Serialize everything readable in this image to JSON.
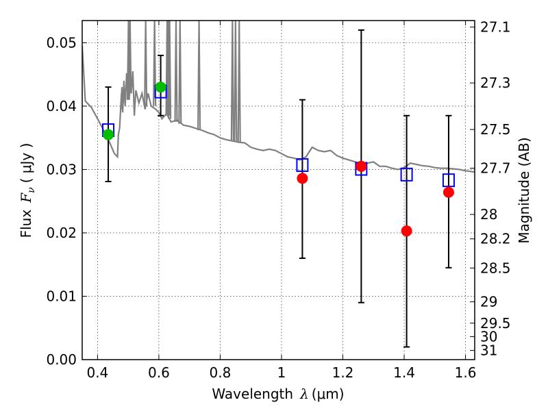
{
  "chart_data": {
    "type": "scatter",
    "xlabel": {
      "text": "Wavelength",
      "symbol": "λ",
      "unit": "(μm)"
    },
    "ylabel": {
      "text": "Flux",
      "symbol": "F",
      "subscript": "ν",
      "unit": "( μJy )"
    },
    "ylabel_right": "Magnitude (AB)",
    "xlim": [
      0.35,
      1.63
    ],
    "ylim": [
      0.0,
      0.0535
    ],
    "grid": true,
    "x_ticks": [
      {
        "v": 0.4,
        "label": "0.4"
      },
      {
        "v": 0.6,
        "label": "0.6"
      },
      {
        "v": 0.8,
        "label": "0.8"
      },
      {
        "v": 1.0,
        "label": "1"
      },
      {
        "v": 1.2,
        "label": "1.2"
      },
      {
        "v": 1.4,
        "label": "1.4"
      },
      {
        "v": 1.6,
        "label": "1.6"
      }
    ],
    "y_ticks": [
      {
        "v": 0.0,
        "label": "0.00"
      },
      {
        "v": 0.01,
        "label": "0.01"
      },
      {
        "v": 0.02,
        "label": "0.02"
      },
      {
        "v": 0.03,
        "label": "0.03"
      },
      {
        "v": 0.04,
        "label": "0.04"
      },
      {
        "v": 0.05,
        "label": "0.05"
      }
    ],
    "mag_ticks": [
      {
        "mag": 27.1,
        "label": "27.1"
      },
      {
        "mag": 27.3,
        "label": "27.3"
      },
      {
        "mag": 27.5,
        "label": "27.5"
      },
      {
        "mag": 27.7,
        "label": "27.7"
      },
      {
        "mag": 28.0,
        "label": "28"
      },
      {
        "mag": 28.2,
        "label": "28.2"
      },
      {
        "mag": 28.5,
        "label": "28.5"
      },
      {
        "mag": 29.0,
        "label": "29"
      },
      {
        "mag": 29.5,
        "label": "29.5"
      },
      {
        "mag": 30.0,
        "label": "30"
      },
      {
        "mag": 31.0,
        "label": "31"
      }
    ],
    "series": [
      {
        "kind": "model_sed",
        "color": "#808080",
        "points": [
          [
            0.35,
            0.0495
          ],
          [
            0.36,
            0.0408
          ],
          [
            0.38,
            0.0398
          ],
          [
            0.4,
            0.038
          ],
          [
            0.42,
            0.0362
          ],
          [
            0.44,
            0.0342
          ],
          [
            0.455,
            0.0325
          ],
          [
            0.465,
            0.032
          ],
          [
            0.468,
            0.0355
          ],
          [
            0.472,
            0.0365
          ],
          [
            0.478,
            0.042
          ],
          [
            0.482,
            0.039
          ],
          [
            0.486,
            0.044
          ],
          [
            0.49,
            0.04
          ],
          [
            0.495,
            0.0452
          ],
          [
            0.5,
            0.041
          ],
          [
            0.505,
            0.0448
          ],
          [
            0.51,
            0.042
          ],
          [
            0.515,
            0.0455
          ],
          [
            0.52,
            0.0385
          ],
          [
            0.525,
            0.0425
          ],
          [
            0.535,
            0.0405
          ],
          [
            0.545,
            0.042
          ],
          [
            0.555,
            0.0395
          ],
          [
            0.565,
            0.042
          ],
          [
            0.575,
            0.04
          ],
          [
            0.59,
            0.0395
          ],
          [
            0.6,
            0.039
          ],
          [
            0.61,
            0.038
          ],
          [
            0.625,
            0.0388
          ],
          [
            0.64,
            0.0375
          ],
          [
            0.66,
            0.0378
          ],
          [
            0.68,
            0.037
          ],
          [
            0.7,
            0.0368
          ],
          [
            0.72,
            0.0365
          ],
          [
            0.74,
            0.0362
          ],
          [
            0.76,
            0.0358
          ],
          [
            0.78,
            0.0355
          ],
          [
            0.8,
            0.035
          ],
          [
            0.82,
            0.0347
          ],
          [
            0.84,
            0.0345
          ],
          [
            0.86,
            0.0343
          ],
          [
            0.88,
            0.0342
          ],
          [
            0.9,
            0.0335
          ],
          [
            0.92,
            0.0332
          ],
          [
            0.94,
            0.033
          ],
          [
            0.96,
            0.0332
          ],
          [
            0.98,
            0.033
          ],
          [
            1.0,
            0.0325
          ],
          [
            1.02,
            0.032
          ],
          [
            1.04,
            0.0318
          ],
          [
            1.06,
            0.0315
          ],
          [
            1.08,
            0.032
          ],
          [
            1.1,
            0.0335
          ],
          [
            1.12,
            0.033
          ],
          [
            1.14,
            0.0328
          ],
          [
            1.16,
            0.033
          ],
          [
            1.18,
            0.0322
          ],
          [
            1.2,
            0.0318
          ],
          [
            1.22,
            0.0315
          ],
          [
            1.24,
            0.0312
          ],
          [
            1.26,
            0.031
          ],
          [
            1.28,
            0.031
          ],
          [
            1.3,
            0.0312
          ],
          [
            1.32,
            0.0305
          ],
          [
            1.34,
            0.0305
          ],
          [
            1.36,
            0.0302
          ],
          [
            1.38,
            0.03
          ],
          [
            1.4,
            0.0303
          ],
          [
            1.42,
            0.031
          ],
          [
            1.44,
            0.0308
          ],
          [
            1.46,
            0.0306
          ],
          [
            1.48,
            0.0305
          ],
          [
            1.5,
            0.0303
          ],
          [
            1.52,
            0.0302
          ],
          [
            1.54,
            0.0302
          ],
          [
            1.56,
            0.0301
          ],
          [
            1.58,
            0.03
          ],
          [
            1.6,
            0.0298
          ],
          [
            1.63,
            0.0296
          ]
        ],
        "spikes": [
          {
            "x": 0.4795,
            "base": 0.0395,
            "peak": 0.043
          },
          {
            "x": 0.487,
            "base": 0.0405,
            "peak": 0.043
          },
          {
            "x": 0.5005,
            "base": 0.041,
            "peak": 0.044
          },
          {
            "x": 0.501,
            "base": 0.0415,
            "peak": 0.0535
          },
          {
            "x": 0.506,
            "base": 0.042,
            "peak": 0.0535
          },
          {
            "x": 0.557,
            "base": 0.04,
            "peak": 0.0535
          },
          {
            "x": 0.586,
            "base": 0.04,
            "peak": 0.0535
          },
          {
            "x": 0.627,
            "base": 0.0385,
            "peak": 0.0535
          },
          {
            "x": 0.631,
            "base": 0.0385,
            "peak": 0.0535
          },
          {
            "x": 0.635,
            "base": 0.038,
            "peak": 0.0535
          },
          {
            "x": 0.656,
            "base": 0.0375,
            "peak": 0.0535
          },
          {
            "x": 0.669,
            "base": 0.0372,
            "peak": 0.0535
          },
          {
            "x": 0.731,
            "base": 0.0362,
            "peak": 0.0535
          },
          {
            "x": 0.84,
            "base": 0.0345,
            "peak": 0.0535
          },
          {
            "x": 0.85,
            "base": 0.0345,
            "peak": 0.0535
          },
          {
            "x": 0.862,
            "base": 0.0343,
            "peak": 0.0535
          }
        ]
      },
      {
        "kind": "model_photometry",
        "marker": "open-square",
        "color": "#0000ff",
        "points": [
          {
            "x": 0.435,
            "y": 0.0362
          },
          {
            "x": 0.606,
            "y": 0.0423
          },
          {
            "x": 1.068,
            "y": 0.0307
          },
          {
            "x": 1.26,
            "y": 0.0301
          },
          {
            "x": 1.408,
            "y": 0.0292
          },
          {
            "x": 1.545,
            "y": 0.0283
          }
        ]
      },
      {
        "kind": "observed",
        "marker": "filled-circle",
        "points": [
          {
            "x": 0.435,
            "y": 0.0355,
            "lo": 0.0281,
            "hi": 0.043,
            "color": "#00bf00"
          },
          {
            "x": 0.606,
            "y": 0.043,
            "lo": 0.0385,
            "hi": 0.048,
            "color": "#00bf00"
          },
          {
            "x": 1.068,
            "y": 0.0286,
            "lo": 0.016,
            "hi": 0.041,
            "color": "#ff0000"
          },
          {
            "x": 1.26,
            "y": 0.0305,
            "lo": 0.009,
            "hi": 0.052,
            "color": "#ff0000"
          },
          {
            "x": 1.408,
            "y": 0.0203,
            "lo": 0.002,
            "hi": 0.0385,
            "color": "#ff0000"
          },
          {
            "x": 1.545,
            "y": 0.0264,
            "lo": 0.0145,
            "hi": 0.0385,
            "color": "#ff0000"
          }
        ]
      }
    ]
  }
}
